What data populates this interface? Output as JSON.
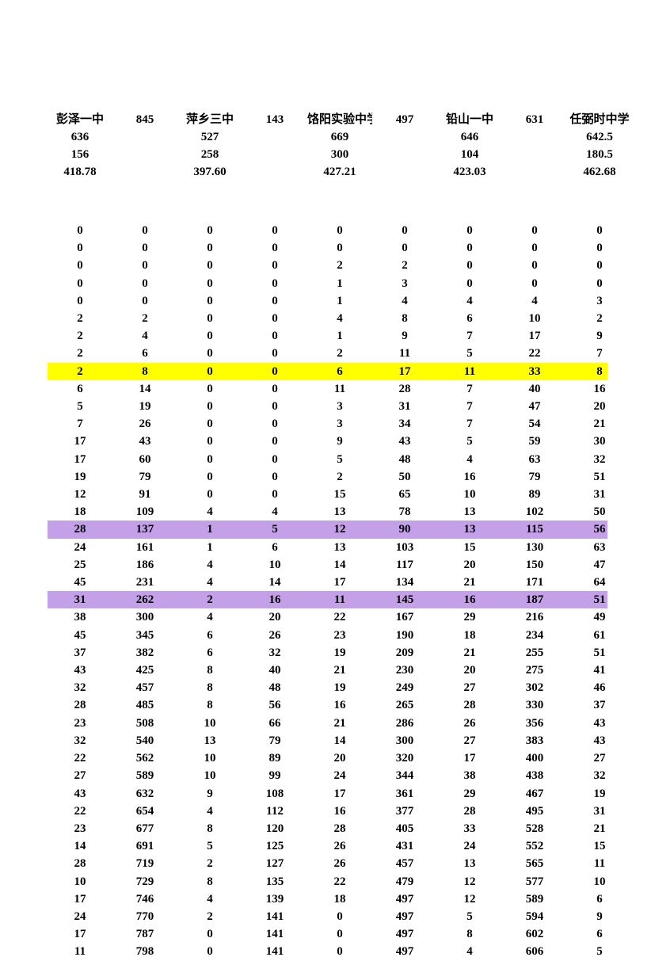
{
  "header": {
    "row1": [
      "彭泽一中",
      "845",
      "萍乡三中",
      "143",
      "饹阳实验中学",
      "497",
      "铅山一中",
      "631",
      "任弼时中学"
    ],
    "row2": [
      "636",
      "",
      "527",
      "",
      "669",
      "",
      "646",
      "",
      "642.5"
    ],
    "row3": [
      "156",
      "",
      "258",
      "",
      "300",
      "",
      "104",
      "",
      "180.5"
    ],
    "row4": [
      "418.78",
      "",
      "397.60",
      "",
      "427.21",
      "",
      "423.03",
      "",
      "462.68"
    ]
  },
  "rows": [
    {
      "v": [
        "0",
        "0",
        "0",
        "0",
        "0",
        "0",
        "0",
        "0",
        "0"
      ],
      "hl": null
    },
    {
      "v": [
        "0",
        "0",
        "0",
        "0",
        "0",
        "0",
        "0",
        "0",
        "0"
      ],
      "hl": null
    },
    {
      "v": [
        "0",
        "0",
        "0",
        "0",
        "2",
        "2",
        "0",
        "0",
        "0"
      ],
      "hl": null
    },
    {
      "v": [
        "0",
        "0",
        "0",
        "0",
        "1",
        "3",
        "0",
        "0",
        "0"
      ],
      "hl": null
    },
    {
      "v": [
        "0",
        "0",
        "0",
        "0",
        "1",
        "4",
        "4",
        "4",
        "3"
      ],
      "hl": null
    },
    {
      "v": [
        "2",
        "2",
        "0",
        "0",
        "4",
        "8",
        "6",
        "10",
        "2"
      ],
      "hl": null
    },
    {
      "v": [
        "2",
        "4",
        "0",
        "0",
        "1",
        "9",
        "7",
        "17",
        "9"
      ],
      "hl": null
    },
    {
      "v": [
        "2",
        "6",
        "0",
        "0",
        "2",
        "11",
        "5",
        "22",
        "7"
      ],
      "hl": null
    },
    {
      "v": [
        "2",
        "8",
        "0",
        "0",
        "6",
        "17",
        "11",
        "33",
        "8"
      ],
      "hl": "yellow"
    },
    {
      "v": [
        "6",
        "14",
        "0",
        "0",
        "11",
        "28",
        "7",
        "40",
        "16"
      ],
      "hl": null
    },
    {
      "v": [
        "5",
        "19",
        "0",
        "0",
        "3",
        "31",
        "7",
        "47",
        "20"
      ],
      "hl": null
    },
    {
      "v": [
        "7",
        "26",
        "0",
        "0",
        "3",
        "34",
        "7",
        "54",
        "21"
      ],
      "hl": null
    },
    {
      "v": [
        "17",
        "43",
        "0",
        "0",
        "9",
        "43",
        "5",
        "59",
        "30"
      ],
      "hl": null
    },
    {
      "v": [
        "17",
        "60",
        "0",
        "0",
        "5",
        "48",
        "4",
        "63",
        "32"
      ],
      "hl": null
    },
    {
      "v": [
        "19",
        "79",
        "0",
        "0",
        "2",
        "50",
        "16",
        "79",
        "51"
      ],
      "hl": null
    },
    {
      "v": [
        "12",
        "91",
        "0",
        "0",
        "15",
        "65",
        "10",
        "89",
        "31"
      ],
      "hl": null
    },
    {
      "v": [
        "18",
        "109",
        "4",
        "4",
        "13",
        "78",
        "13",
        "102",
        "50"
      ],
      "hl": null
    },
    {
      "v": [
        "28",
        "137",
        "1",
        "5",
        "12",
        "90",
        "13",
        "115",
        "56"
      ],
      "hl": "purple"
    },
    {
      "v": [
        "24",
        "161",
        "1",
        "6",
        "13",
        "103",
        "15",
        "130",
        "63"
      ],
      "hl": null
    },
    {
      "v": [
        "25",
        "186",
        "4",
        "10",
        "14",
        "117",
        "20",
        "150",
        "47"
      ],
      "hl": null
    },
    {
      "v": [
        "45",
        "231",
        "4",
        "14",
        "17",
        "134",
        "21",
        "171",
        "64"
      ],
      "hl": null
    },
    {
      "v": [
        "31",
        "262",
        "2",
        "16",
        "11",
        "145",
        "16",
        "187",
        "51"
      ],
      "hl": "purple"
    },
    {
      "v": [
        "38",
        "300",
        "4",
        "20",
        "22",
        "167",
        "29",
        "216",
        "49"
      ],
      "hl": null
    },
    {
      "v": [
        "45",
        "345",
        "6",
        "26",
        "23",
        "190",
        "18",
        "234",
        "61"
      ],
      "hl": null
    },
    {
      "v": [
        "37",
        "382",
        "6",
        "32",
        "19",
        "209",
        "21",
        "255",
        "51"
      ],
      "hl": null
    },
    {
      "v": [
        "43",
        "425",
        "8",
        "40",
        "21",
        "230",
        "20",
        "275",
        "41"
      ],
      "hl": null
    },
    {
      "v": [
        "32",
        "457",
        "8",
        "48",
        "19",
        "249",
        "27",
        "302",
        "46"
      ],
      "hl": null
    },
    {
      "v": [
        "28",
        "485",
        "8",
        "56",
        "16",
        "265",
        "28",
        "330",
        "37"
      ],
      "hl": null
    },
    {
      "v": [
        "23",
        "508",
        "10",
        "66",
        "21",
        "286",
        "26",
        "356",
        "43"
      ],
      "hl": null
    },
    {
      "v": [
        "32",
        "540",
        "13",
        "79",
        "14",
        "300",
        "27",
        "383",
        "43"
      ],
      "hl": null
    },
    {
      "v": [
        "22",
        "562",
        "10",
        "89",
        "20",
        "320",
        "17",
        "400",
        "27"
      ],
      "hl": null
    },
    {
      "v": [
        "27",
        "589",
        "10",
        "99",
        "24",
        "344",
        "38",
        "438",
        "32"
      ],
      "hl": null
    },
    {
      "v": [
        "43",
        "632",
        "9",
        "108",
        "17",
        "361",
        "29",
        "467",
        "19"
      ],
      "hl": null
    },
    {
      "v": [
        "22",
        "654",
        "4",
        "112",
        "16",
        "377",
        "28",
        "495",
        "31"
      ],
      "hl": null
    },
    {
      "v": [
        "23",
        "677",
        "8",
        "120",
        "28",
        "405",
        "33",
        "528",
        "21"
      ],
      "hl": null
    },
    {
      "v": [
        "14",
        "691",
        "5",
        "125",
        "26",
        "431",
        "24",
        "552",
        "15"
      ],
      "hl": null
    },
    {
      "v": [
        "28",
        "719",
        "2",
        "127",
        "26",
        "457",
        "13",
        "565",
        "11"
      ],
      "hl": null
    },
    {
      "v": [
        "10",
        "729",
        "8",
        "135",
        "22",
        "479",
        "12",
        "577",
        "10"
      ],
      "hl": null
    },
    {
      "v": [
        "17",
        "746",
        "4",
        "139",
        "18",
        "497",
        "12",
        "589",
        "6"
      ],
      "hl": null
    },
    {
      "v": [
        "24",
        "770",
        "2",
        "141",
        "0",
        "497",
        "5",
        "594",
        "9"
      ],
      "hl": null
    },
    {
      "v": [
        "17",
        "787",
        "0",
        "141",
        "0",
        "497",
        "8",
        "602",
        "6"
      ],
      "hl": null
    },
    {
      "v": [
        "11",
        "798",
        "0",
        "141",
        "0",
        "497",
        "4",
        "606",
        "5"
      ],
      "hl": null
    }
  ],
  "colors": {
    "yellow": "#ffff00",
    "purple": "#c4a0e8",
    "text": "#000000",
    "background": "#ffffff"
  }
}
